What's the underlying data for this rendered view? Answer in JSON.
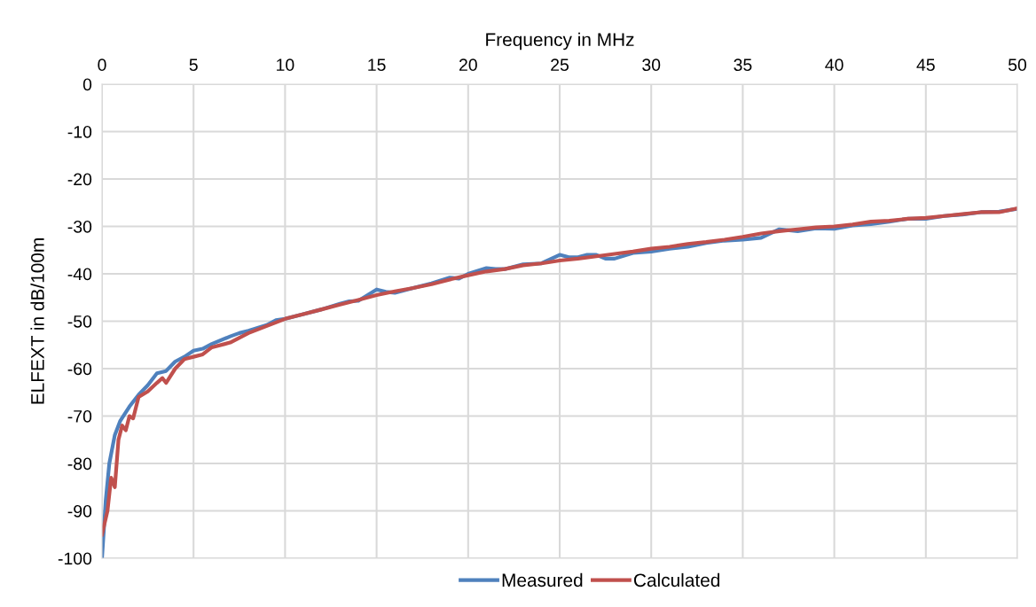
{
  "chart_data": {
    "type": "line",
    "xlabel": "Frequency in MHz",
    "ylabel": "ELFEXT in dB/100m",
    "xlim": [
      0,
      50
    ],
    "xticks": [
      0,
      5,
      10,
      15,
      20,
      25,
      30,
      35,
      40,
      45,
      50
    ],
    "ylim": [
      -100,
      0
    ],
    "yticks": [
      0,
      -10,
      -20,
      -30,
      -40,
      -50,
      -60,
      -70,
      -80,
      -90,
      -100
    ],
    "grid": true,
    "legend": "bottom",
    "marker": "none",
    "line_style": "solid",
    "series": [
      {
        "name": "Measured",
        "color": "#4f81bd",
        "x": [
          0,
          0.2,
          0.4,
          0.7,
          1,
          1.5,
          2,
          2.5,
          3,
          3.5,
          4,
          4.5,
          5,
          5.5,
          6,
          7,
          7.5,
          8,
          9,
          9.5,
          10,
          11,
          12,
          13,
          13.5,
          14,
          15,
          15.5,
          16,
          17,
          18,
          19,
          19.5,
          20,
          21,
          21.5,
          22,
          23,
          24,
          25,
          25.5,
          26,
          26.5,
          27,
          27.5,
          28,
          29,
          30,
          31,
          32,
          33,
          34,
          35,
          36,
          37,
          38,
          39,
          40,
          41,
          42,
          43,
          44,
          45,
          46,
          47,
          48,
          49,
          50
        ],
        "values": [
          -100,
          -88,
          -80,
          -74,
          -71,
          -68,
          -65.5,
          -63.5,
          -61,
          -60.5,
          -58.5,
          -57.5,
          -56.2,
          -55.8,
          -54.8,
          -53.2,
          -52.5,
          -52,
          -50.8,
          -49.8,
          -49.5,
          -48.5,
          -47.5,
          -46.3,
          -45.8,
          -45.7,
          -43.3,
          -43.8,
          -44,
          -43,
          -42,
          -40.8,
          -41,
          -40,
          -38.8,
          -39,
          -39,
          -38,
          -37.8,
          -36,
          -36.5,
          -36.5,
          -36,
          -36,
          -36.8,
          -36.8,
          -35.6,
          -35.3,
          -34.7,
          -34.3,
          -33.5,
          -33,
          -32.8,
          -32.4,
          -30.6,
          -31,
          -30.4,
          -30.5,
          -29.8,
          -29.5,
          -29,
          -28.4,
          -28.4,
          -27.8,
          -27.5,
          -27,
          -26.9,
          -26.3
        ]
      },
      {
        "name": "Calculated",
        "color": "#c0504d",
        "x": [
          0,
          0.3,
          0.5,
          0.7,
          0.9,
          1.1,
          1.3,
          1.5,
          1.7,
          2,
          2.5,
          3,
          3.3,
          3.5,
          4,
          4.5,
          5,
          5.5,
          6,
          7,
          8,
          9,
          10,
          11,
          12,
          13,
          14,
          15,
          16,
          17,
          18,
          19,
          20,
          21,
          22,
          23,
          24,
          25,
          26,
          27,
          28,
          29,
          30,
          31,
          32,
          33,
          34,
          35,
          36,
          37,
          38,
          39,
          40,
          41,
          42,
          43,
          44,
          45,
          46,
          47,
          48,
          49,
          50
        ],
        "values": [
          -95,
          -90,
          -83,
          -85,
          -75,
          -72,
          -73,
          -70,
          -70.5,
          -66,
          -64.8,
          -63,
          -62,
          -63,
          -60,
          -58,
          -57.5,
          -57,
          -55.5,
          -54.5,
          -52.5,
          -51,
          -49.5,
          -48.5,
          -47.5,
          -46.5,
          -45.5,
          -44.5,
          -43.7,
          -43,
          -42.2,
          -41.2,
          -40.3,
          -39.5,
          -39,
          -38.2,
          -37.8,
          -37.2,
          -36.8,
          -36.3,
          -35.8,
          -35.3,
          -34.7,
          -34.3,
          -33.7,
          -33.3,
          -32.8,
          -32.2,
          -31.5,
          -31,
          -30.6,
          -30.2,
          -30,
          -29.6,
          -29,
          -28.8,
          -28.4,
          -28.2,
          -27.8,
          -27.4,
          -27,
          -27,
          -26.2
        ]
      }
    ]
  }
}
